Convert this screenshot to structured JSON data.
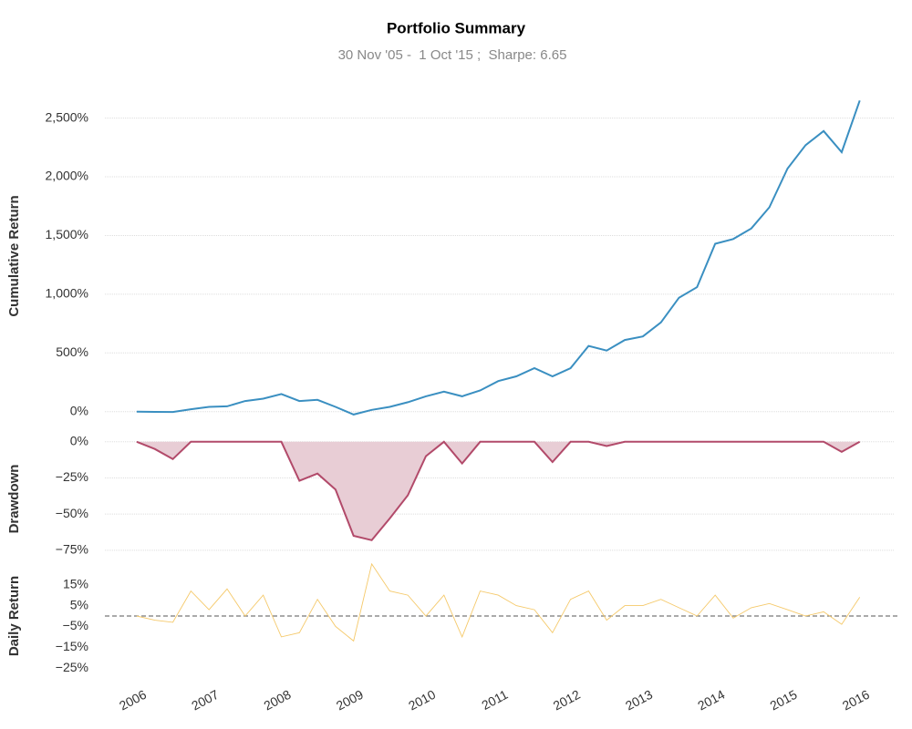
{
  "chart_data": [
    {
      "type": "line",
      "title": "Portfolio Summary",
      "subtitle": "30 Nov '05 -  1 Oct '15 ;  Sharpe: 6.65",
      "ylabel": "Cumulative Return",
      "color": "#3a8fc1",
      "x": [
        2006,
        2006.25,
        2006.5,
        2006.75,
        2007,
        2007.25,
        2007.5,
        2007.75,
        2008,
        2008.25,
        2008.5,
        2008.75,
        2009,
        2009.25,
        2009.5,
        2009.75,
        2010,
        2010.25,
        2010.5,
        2010.75,
        2011,
        2011.25,
        2011.5,
        2011.75,
        2012,
        2012.25,
        2012.5,
        2012.75,
        2013,
        2013.25,
        2013.5,
        2013.75,
        2014,
        2014.25,
        2014.5,
        2014.75,
        2015,
        2015.25,
        2015.5,
        2015.75,
        2016
      ],
      "values": [
        0,
        -2,
        -3,
        20,
        40,
        45,
        90,
        110,
        150,
        90,
        100,
        40,
        -25,
        15,
        40,
        80,
        130,
        170,
        130,
        180,
        260,
        300,
        370,
        300,
        370,
        560,
        520,
        610,
        640,
        760,
        970,
        1060,
        1430,
        1470,
        1560,
        1740,
        2070,
        2270,
        2390,
        2210,
        2650
      ],
      "xlim": [
        2005.56,
        2016.47
      ],
      "ylim": [
        -80,
        2730
      ],
      "yticks": [
        {
          "value": 0,
          "label": "0%"
        },
        {
          "value": 500,
          "label": "500%"
        },
        {
          "value": 1000,
          "label": "1,000%"
        },
        {
          "value": 1500,
          "label": "1,500%"
        },
        {
          "value": 2000,
          "label": "2,000%"
        },
        {
          "value": 2500,
          "label": "2,500%"
        }
      ],
      "grid": true
    },
    {
      "type": "area",
      "ylabel": "Drawdown",
      "color": "#b24a6a",
      "fill_color": "#e8cdd5",
      "x": [
        2006,
        2006.25,
        2006.5,
        2006.75,
        2007,
        2007.25,
        2007.5,
        2007.75,
        2008,
        2008.25,
        2008.5,
        2008.75,
        2009,
        2009.25,
        2009.5,
        2009.75,
        2010,
        2010.25,
        2010.5,
        2010.75,
        2011,
        2011.25,
        2011.5,
        2011.75,
        2012,
        2012.25,
        2012.5,
        2012.75,
        2013,
        2013.25,
        2013.5,
        2013.75,
        2014,
        2014.25,
        2014.5,
        2014.75,
        2015,
        2015.25,
        2015.5,
        2015.75,
        2016
      ],
      "values": [
        0,
        -5,
        -12,
        0,
        0,
        0,
        0,
        0,
        0,
        -27,
        -22,
        -33,
        -65,
        -68,
        -53,
        -37,
        -10,
        0,
        -15,
        0,
        0,
        0,
        0,
        -14,
        0,
        0,
        -3,
        0,
        0,
        0,
        0,
        0,
        0,
        0,
        0,
        0,
        0,
        0,
        0,
        -7,
        0
      ],
      "xlim": [
        2005.56,
        2016.47
      ],
      "ylim": [
        -82,
        3
      ],
      "yticks": [
        {
          "value": 0,
          "label": "0%"
        },
        {
          "value": -25,
          "label": "−25%"
        },
        {
          "value": -50,
          "label": "−50%"
        },
        {
          "value": -75,
          "label": "−75%"
        }
      ],
      "grid": true
    },
    {
      "type": "line",
      "ylabel": "Daily Return",
      "color": "#f5c96a",
      "x": [
        2006,
        2006.25,
        2006.5,
        2006.75,
        2007,
        2007.25,
        2007.5,
        2007.75,
        2008,
        2008.25,
        2008.5,
        2008.75,
        2009,
        2009.25,
        2009.5,
        2009.75,
        2010,
        2010.25,
        2010.5,
        2010.75,
        2011,
        2011.25,
        2011.5,
        2011.75,
        2012,
        2012.25,
        2012.5,
        2012.75,
        2013,
        2013.25,
        2013.5,
        2013.75,
        2014,
        2014.25,
        2014.5,
        2014.75,
        2015,
        2015.25,
        2015.5,
        2015.75,
        2016
      ],
      "values": [
        0,
        -2,
        -3,
        12,
        3,
        13,
        0,
        10,
        -10,
        -8,
        8,
        -5,
        -12,
        25,
        12,
        10,
        0,
        10,
        -10,
        12,
        10,
        5,
        3,
        -8,
        8,
        12,
        -2,
        5,
        5,
        8,
        4,
        0,
        10,
        -1,
        4,
        6,
        3,
        0,
        2,
        -4,
        9
      ],
      "xlim": [
        2005.56,
        2016.47
      ],
      "ylim": [
        -28,
        28
      ],
      "yticks": [
        {
          "value": 15,
          "label": "15%"
        },
        {
          "value": 5,
          "label": "5%"
        },
        {
          "value": -5,
          "label": "−5%"
        },
        {
          "value": -15,
          "label": "−15%"
        },
        {
          "value": -25,
          "label": "−25%"
        }
      ],
      "xticks": [
        2006,
        2007,
        2008,
        2009,
        2010,
        2011,
        2012,
        2013,
        2014,
        2015,
        2016
      ],
      "grid": false
    }
  ]
}
